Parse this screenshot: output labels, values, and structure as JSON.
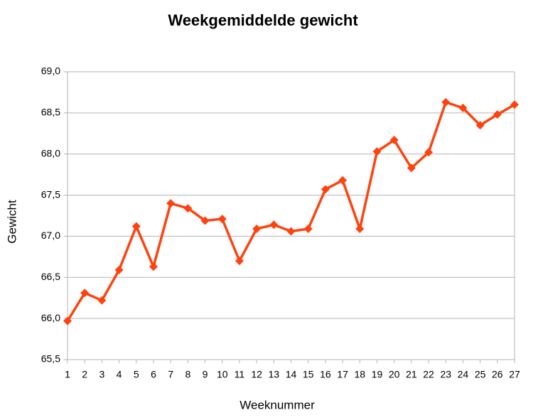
{
  "chart_data": {
    "type": "line",
    "title": "Weekgemiddelde gewicht",
    "x_label": "Weeknummer",
    "y_label": "Gewicht",
    "x": [
      1,
      2,
      3,
      4,
      5,
      6,
      7,
      8,
      9,
      10,
      11,
      12,
      13,
      14,
      15,
      16,
      17,
      18,
      19,
      20,
      21,
      22,
      23,
      24,
      25,
      26,
      27
    ],
    "series": [
      {
        "name": "Gewicht",
        "color": "#ff420e",
        "values": [
          65.97,
          66.31,
          66.22,
          66.59,
          67.12,
          66.63,
          67.4,
          67.34,
          67.19,
          67.21,
          66.7,
          67.09,
          67.14,
          67.06,
          67.09,
          67.57,
          67.68,
          67.09,
          68.03,
          68.17,
          67.83,
          68.02,
          68.63,
          68.56,
          68.35,
          68.48,
          68.6
        ]
      }
    ],
    "xlim": [
      1,
      27
    ],
    "xticks": [
      1,
      2,
      3,
      4,
      5,
      6,
      7,
      8,
      9,
      10,
      11,
      12,
      13,
      14,
      15,
      16,
      17,
      18,
      19,
      20,
      21,
      22,
      23,
      24,
      25,
      26,
      27
    ],
    "ylim": [
      65.5,
      69.0
    ],
    "yticks": [
      {
        "value": 65.5,
        "label": "65,5"
      },
      {
        "value": 66.0,
        "label": "66,0"
      },
      {
        "value": 66.5,
        "label": "66,5"
      },
      {
        "value": 67.0,
        "label": "67,0"
      },
      {
        "value": 67.5,
        "label": "67,5"
      },
      {
        "value": 68.0,
        "label": "68,0"
      },
      {
        "value": 68.5,
        "label": "68,5"
      },
      {
        "value": 69.0,
        "label": "69,0"
      }
    ],
    "grid": true
  }
}
